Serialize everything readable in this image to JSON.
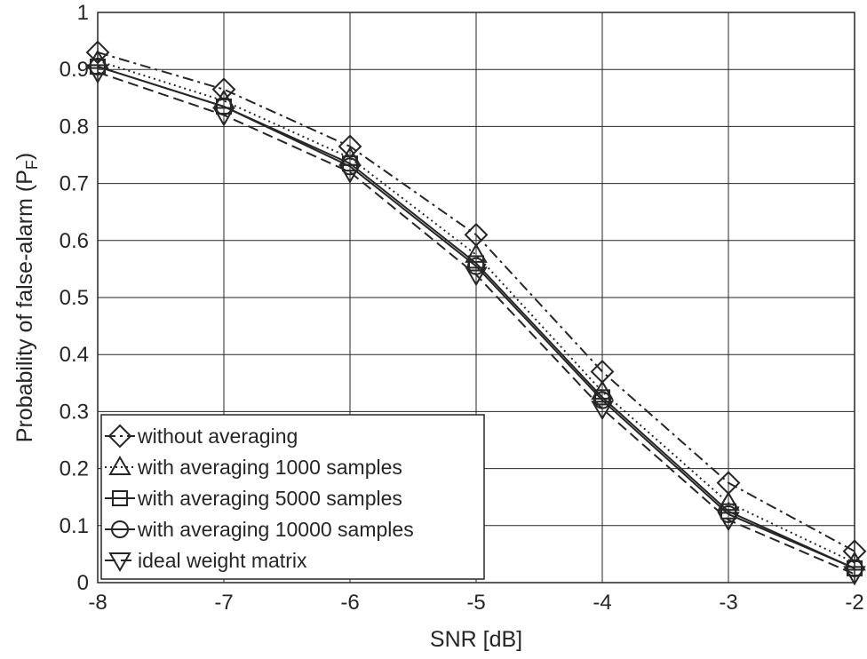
{
  "chart_data": {
    "type": "line",
    "xlabel": "SNR [dB]",
    "ylabel_main": "Probability of false-alarm (P",
    "ylabel_sub": "F",
    "ylabel_close": ")",
    "xlim": [
      -8,
      -2
    ],
    "ylim": [
      0,
      1
    ],
    "xticks": [
      -8,
      -7,
      -6,
      -5,
      -4,
      -3,
      -2
    ],
    "yticks": [
      0,
      0.1,
      0.2,
      0.3,
      0.4,
      0.5,
      0.6,
      0.7,
      0.8,
      0.9,
      1
    ],
    "x_tick_labels": [
      "-8",
      "-7",
      "-6",
      "-5",
      "-4",
      "-3",
      "-2"
    ],
    "y_tick_labels": [
      "0",
      "0.1",
      "0.2",
      "0.3",
      "0.4",
      "0.5",
      "0.6",
      "0.7",
      "0.8",
      "0.9",
      "1"
    ],
    "grid": true,
    "legend_position": "bottom-left",
    "x": [
      -8,
      -7,
      -6,
      -5,
      -4,
      -3,
      -2
    ],
    "series": [
      {
        "name": "without averaging",
        "marker": "diamond",
        "dash": "dashdot",
        "values": [
          0.93,
          0.865,
          0.765,
          0.61,
          0.37,
          0.175,
          0.055
        ]
      },
      {
        "name": "with averaging 1000 samples",
        "marker": "triangle-up",
        "dash": "dotted",
        "values": [
          0.915,
          0.845,
          0.745,
          0.575,
          0.335,
          0.14,
          0.035
        ]
      },
      {
        "name": "with averaging 5000 samples",
        "marker": "square",
        "dash": "solid",
        "values": [
          0.905,
          0.835,
          0.735,
          0.56,
          0.325,
          0.125,
          0.025
        ]
      },
      {
        "name": "with averaging 10000 samples",
        "marker": "circle",
        "dash": "solid",
        "values": [
          0.905,
          0.835,
          0.73,
          0.555,
          0.32,
          0.12,
          0.025
        ]
      },
      {
        "name": "ideal weight matrix",
        "marker": "triangle-down",
        "dash": "dashed",
        "values": [
          0.895,
          0.82,
          0.72,
          0.54,
          0.305,
          0.11,
          0.015
        ]
      }
    ]
  }
}
